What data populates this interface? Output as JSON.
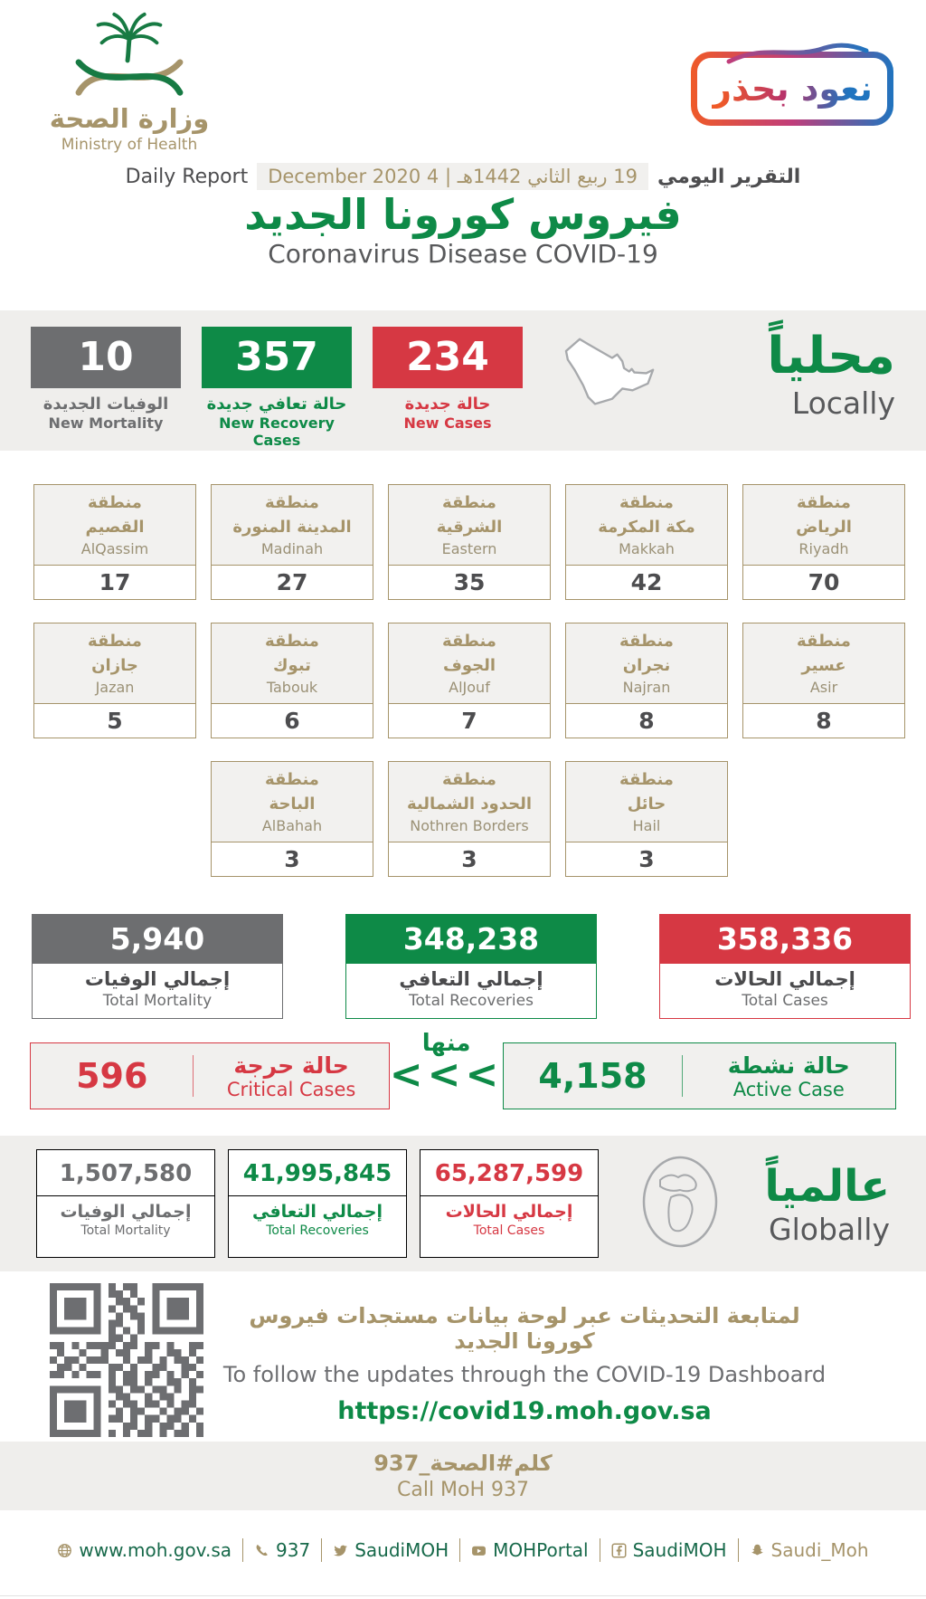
{
  "header": {
    "ministry": {
      "name_ar": "وزارة الصحة",
      "name_en": "Ministry of Health"
    },
    "campaign_badge": "نعود بحذر",
    "report_label_en": "Daily Report",
    "report_date": "19 ربيع الثاني 1442هـ | 4 December 2020",
    "report_label_ar": "التقرير اليومي",
    "title_ar": "فيروس كورونا الجديد",
    "title_en": "Coronavirus Disease COVID-19"
  },
  "local": {
    "title_ar": "محلياً",
    "title_en": "Locally",
    "new_mortality": {
      "value": "10",
      "label_ar": "الوفيات الجديدة",
      "label_en": "New Mortality"
    },
    "new_recoveries": {
      "value": "357",
      "label_ar": "حالة تعافي جديدة",
      "label_en": "New Recovery Cases"
    },
    "new_cases": {
      "value": "234",
      "label_ar": "حالة جديدة",
      "label_en": "New Cases"
    },
    "region_prefix_ar": "منطقة",
    "regions": [
      {
        "ar": "القصيم",
        "en": "AlQassim",
        "value": "17"
      },
      {
        "ar": "المدينة المنورة",
        "en": "Madinah",
        "value": "27"
      },
      {
        "ar": "الشرقية",
        "en": "Eastern",
        "value": "35"
      },
      {
        "ar": "مكة المكرمة",
        "en": "Makkah",
        "value": "42"
      },
      {
        "ar": "الرياض",
        "en": "Riyadh",
        "value": "70"
      },
      {
        "ar": "جازان",
        "en": "Jazan",
        "value": "5"
      },
      {
        "ar": "تبوك",
        "en": "Tabouk",
        "value": "6"
      },
      {
        "ar": "الجوف",
        "en": "AlJouf",
        "value": "7"
      },
      {
        "ar": "نجران",
        "en": "Najran",
        "value": "8"
      },
      {
        "ar": "عسير",
        "en": "Asir",
        "value": "8"
      },
      {
        "ar": "الباحة",
        "en": "AlBahah",
        "value": "3"
      },
      {
        "ar": "الحدود الشمالية",
        "en": "Nothren Borders",
        "value": "3"
      },
      {
        "ar": "حائل",
        "en": "Hail",
        "value": "3"
      }
    ],
    "total_mortality": {
      "value": "5,940",
      "label_ar": "إجمالي الوفيات",
      "label_en": "Total Mortality"
    },
    "total_recoveries": {
      "value": "348,238",
      "label_ar": "إجمالي التعافي",
      "label_en": "Total Recoveries"
    },
    "total_cases": {
      "value": "358,336",
      "label_ar": "إجمالي الحالات",
      "label_en": "Total Cases"
    },
    "critical": {
      "value": "596",
      "label_ar": "حالة حرجة",
      "label_en": "Critical Cases"
    },
    "of_which": {
      "label_ar": "منها",
      "arrows": "<<<"
    },
    "active": {
      "value": "4,158",
      "label_ar": "حالة نشطة",
      "label_en": "Active Case"
    }
  },
  "global": {
    "title_ar": "عالمياً",
    "title_en": "Globally",
    "total_mortality": {
      "value": "1,507,580",
      "label_ar": "إجمالي الوفيات",
      "label_en": "Total Mortality"
    },
    "total_recoveries": {
      "value": "41,995,845",
      "label_ar": "إجمالي التعافي",
      "label_en": "Total Recoveries"
    },
    "total_cases": {
      "value": "65,287,599",
      "label_ar": "إجمالي الحالات",
      "label_en": "Total Cases"
    }
  },
  "dashboard": {
    "note_ar": "لمتابعة التحديثات عبر لوحة بيانات مستجدات فيروس كورونا الجديد",
    "note_en": "To follow the updates through the COVID-19 Dashboard",
    "url": "https://covid19.moh.gov.sa"
  },
  "call_center": {
    "hashtag_ar": "كلم#الصحة_937",
    "label_en": "Call MoH 937"
  },
  "footer": {
    "items": [
      {
        "icon": "globe-icon",
        "label": "www.moh.gov.sa"
      },
      {
        "icon": "phone-icon",
        "label": "937"
      },
      {
        "icon": "twitter-icon",
        "label": "SaudiMOH"
      },
      {
        "icon": "youtube-icon",
        "label": "MOHPortal"
      },
      {
        "icon": "facebook-icon",
        "label": "SaudiMOH"
      },
      {
        "icon": "snapchat-icon",
        "label": "Saudi_Moh"
      }
    ]
  },
  "colors": {
    "green": "#0e8a47",
    "red": "#d63843",
    "gray": "#6d6e70",
    "gold": "#a6946a"
  }
}
